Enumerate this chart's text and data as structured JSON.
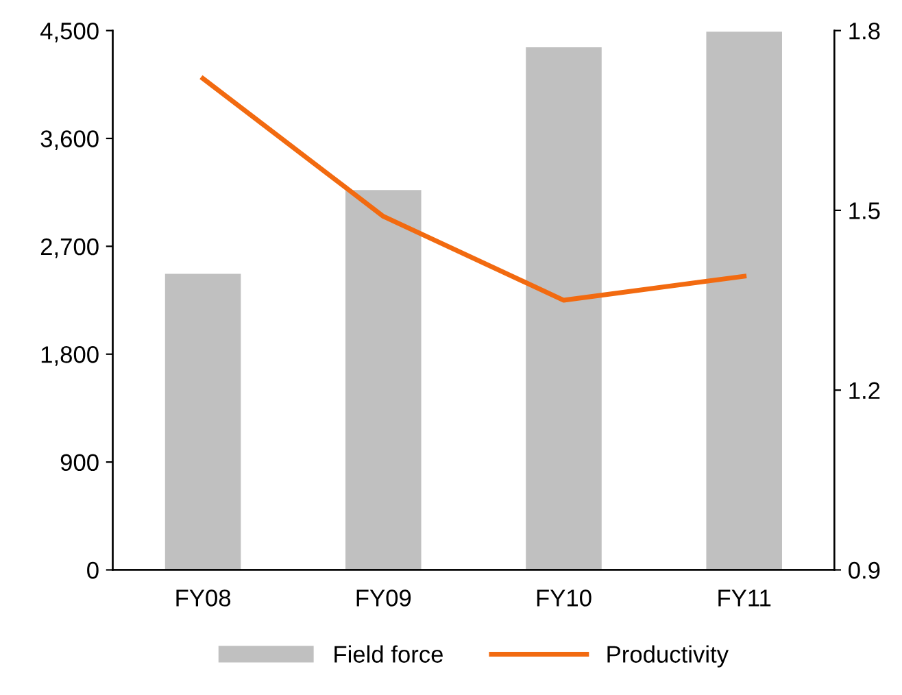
{
  "chart_data": {
    "type": "bar",
    "categories": [
      "FY08",
      "FY09",
      "FY10",
      "FY11"
    ],
    "series": [
      {
        "name": "Field force",
        "color": "#c0c0c0",
        "values": [
          2470,
          3170,
          4360,
          4490
        ]
      },
      {
        "name": "Productivity",
        "type": "line",
        "axis": "y2",
        "color": "#f26a10",
        "values": [
          1.72,
          1.49,
          1.35,
          1.39
        ]
      }
    ],
    "ylim": [
      0,
      4500
    ],
    "yticks": [
      {
        "value": 0,
        "label": "0"
      },
      {
        "value": 900,
        "label": "900"
      },
      {
        "value": 1800,
        "label": "1,800"
      },
      {
        "value": 2700,
        "label": "2,700"
      },
      {
        "value": 3600,
        "label": "3,600"
      },
      {
        "value": 4500,
        "label": "4,500"
      }
    ],
    "y2lim": [
      0.9,
      1.8
    ],
    "y2ticks": [
      {
        "value": 0.9,
        "label": "0.9"
      },
      {
        "value": 1.2,
        "label": "1.2"
      },
      {
        "value": 1.5,
        "label": "1.5"
      },
      {
        "value": 1.8,
        "label": "1.8"
      }
    ],
    "legend": "bottom",
    "grid": false,
    "marker": "none",
    "line_style": "solid"
  }
}
